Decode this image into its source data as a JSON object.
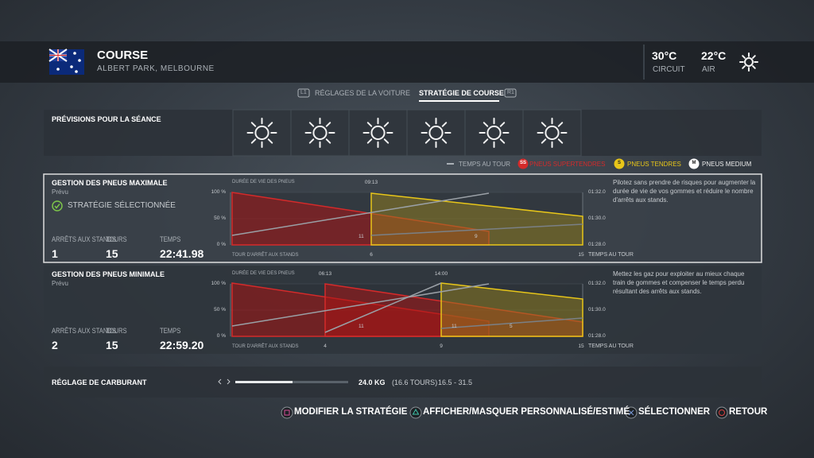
{
  "header": {
    "title": "COURSE",
    "subtitle": "ALBERT PARK, MELBOURNE",
    "circuit_temp": "30°C",
    "circuit_label": "CIRCUIT",
    "air_temp": "22°C",
    "air_label": "AIR"
  },
  "tabs": {
    "left_button": "L1",
    "right_button": "R1",
    "items": [
      "RÉGLAGES DE LA VOITURE",
      "STRATÉGIE DE COURSE"
    ]
  },
  "forecast": {
    "title": "PRÉVISIONS POUR LA SÉANCE"
  },
  "legend": {
    "lap_time": "TEMPS AU TOUR",
    "tyres": [
      {
        "icon": "SS",
        "label": "PNEUS SUPERTENDRES",
        "color": "#d42a2a"
      },
      {
        "icon": "S",
        "label": "PNEUS TENDRES",
        "color": "#e8c619"
      },
      {
        "icon": "M",
        "label": "PNEUS MEDIUM",
        "color": "#e8e8e8"
      }
    ]
  },
  "strategies": [
    {
      "title": "GESTION DES PNEUS MAXIMALE",
      "subtitle": "Prévu",
      "status": "STRATÉGIE SÉLECTIONNÉE",
      "stats": [
        {
          "label": "ARRÊTS AUX STANDS",
          "value": "1"
        },
        {
          "label": "TOURS",
          "value": "15"
        },
        {
          "label": "TEMPS",
          "value": "22:41.98"
        }
      ],
      "chart": {
        "life_label": "DURÉE DE VIE DES PNEUS",
        "life_ticks": [
          "100 %",
          "50 %",
          "0 %"
        ],
        "time_ticks": [
          "01:32.0",
          "01:30.0",
          "01:28.0"
        ],
        "stop_label": "TOUR D'ARRÊT AUX STANDS",
        "lap_time_label": "TEMPS AU TOUR",
        "stop_laps": [
          "6",
          "15"
        ],
        "stop_times": [
          "09:13"
        ],
        "stint_labels": [
          "11",
          "9"
        ]
      },
      "description": "Pilotez sans prendre de risques pour augmenter la durée de vie de vos gommes et réduire le nombre d'arrêts aux stands."
    },
    {
      "title": "GESTION DES PNEUS MINIMALE",
      "subtitle": "Prévu",
      "stats": [
        {
          "label": "ARRÊTS AUX STANDS",
          "value": "2"
        },
        {
          "label": "TOURS",
          "value": "15"
        },
        {
          "label": "TEMPS",
          "value": "22:59.20"
        }
      ],
      "chart": {
        "life_label": "DURÉE DE VIE DES PNEUS",
        "life_ticks": [
          "100 %",
          "50 %",
          "0 %"
        ],
        "time_ticks": [
          "01:32.0",
          "01:30.0",
          "01:28.0"
        ],
        "stop_label": "TOUR D'ARRÊT AUX STANDS",
        "lap_time_label": "TEMPS AU TOUR",
        "stop_laps": [
          "4",
          "9",
          "15"
        ],
        "stop_times": [
          "06:13",
          "14:00"
        ],
        "stint_labels": [
          "11",
          "11",
          "5"
        ]
      },
      "description": "Mettez les gaz pour exploiter au mieux chaque train de gommes et compenser le temps perdu résultant des arrêts aux stands."
    }
  ],
  "fuel": {
    "label": "RÉGLAGE DE CARBURANT",
    "value": "24.0 KG",
    "laps": "(16.6 TOURS)",
    "range": "16.5 - 31.5"
  },
  "actions": [
    "MODIFIER LA STRATÉGIE",
    "AFFICHER/MASQUER PERSONNALISÉ/ESTIMÉ",
    "SÉLECTIONNER",
    "RETOUR"
  ]
}
